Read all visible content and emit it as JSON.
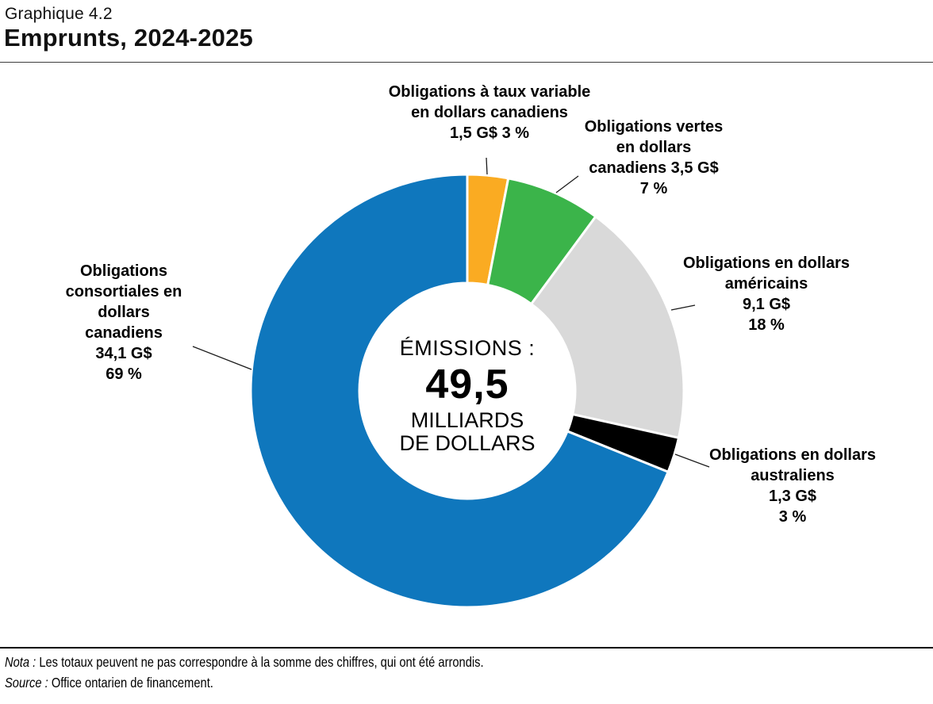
{
  "header": {
    "chart_number": "Graphique 4.2",
    "title": "Emprunts, 2024-2025"
  },
  "center": {
    "prefix": "ÉMISSIONS :",
    "value": "49,5",
    "unit_lines": [
      "MILLIARDS",
      "DE DOLLARS"
    ]
  },
  "footer": {
    "nota_label": "Nota :",
    "nota_text": " Les totaux peuvent ne pas correspondre à la somme des chiffres, qui ont été arrondis.",
    "source_label": "Source :",
    "source_text": " Office ontarien de financement."
  },
  "chart_data": {
    "type": "pie",
    "subtype": "donut",
    "title": "Emprunts, 2024-2025",
    "unit": "G$",
    "total": 49.5,
    "center_text": "ÉMISSIONS : 49,5 MILLIARDS DE DOLLARS",
    "legend": "none (direct labels with leader lines)",
    "start_angle_deg": 0,
    "direction": "clockwise",
    "slices": [
      {
        "id": "variable-rate-cad",
        "name": "Obligations à taux variable en dollars canadiens",
        "value": 1.5,
        "percent": 3,
        "color": "#FAAB22",
        "label_lines": [
          "Obligations à taux variable",
          "en dollars canadiens",
          "1,5 G$ 3 %"
        ]
      },
      {
        "id": "green-cad",
        "name": "Obligations vertes en dollars canadiens",
        "value": 3.5,
        "percent": 7,
        "color": "#3BB44A",
        "label_lines": [
          "Obligations vertes",
          "en dollars",
          "canadiens 3,5 G$",
          "7 %"
        ]
      },
      {
        "id": "usd",
        "name": "Obligations en dollars américains",
        "value": 9.1,
        "percent": 18,
        "color": "#D9D9D9",
        "label_lines": [
          "Obligations en dollars",
          "américains",
          "9,1 G$",
          "18 %"
        ]
      },
      {
        "id": "aud",
        "name": "Obligations en dollars australiens",
        "value": 1.3,
        "percent": 3,
        "color": "#000000",
        "label_lines": [
          "Obligations en dollars",
          "australiens",
          "1,3 G$",
          "3 %"
        ]
      },
      {
        "id": "syndicated-cad",
        "name": "Obligations consortiales en dollars canadiens",
        "value": 34.1,
        "percent": 69,
        "color": "#0F77BD",
        "label_lines": [
          "Obligations",
          "consortiales en",
          "dollars",
          "canadiens",
          "34,1 G$",
          "69 %"
        ]
      }
    ]
  }
}
